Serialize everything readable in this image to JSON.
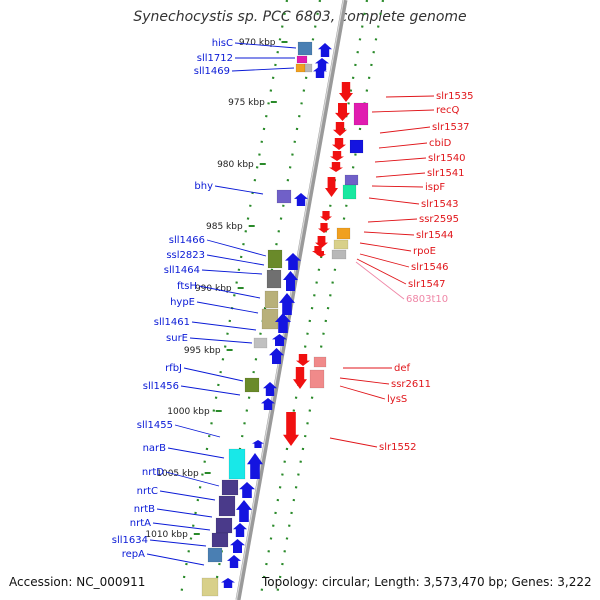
{
  "title": "Synechocystis sp. PCC 6803, complete genome",
  "accession": "Accession: NC_000911",
  "topology": "Topology: circular; Length: 3,573,470 bp; Genes: 3,222",
  "colors": {
    "left_label": "#0a1ad6",
    "right_label": "#e0161b",
    "rna_label": "#ef86a6",
    "tick": "#2a8a2a",
    "backbone": "#9a9a9a"
  },
  "kbp_ticks": [
    {
      "label": "970 kbp",
      "kbp": 970
    },
    {
      "label": "975 kbp",
      "kbp": 975
    },
    {
      "label": "980 kbp",
      "kbp": 980
    },
    {
      "label": "985 kbp",
      "kbp": 985
    },
    {
      "label": "990 kbp",
      "kbp": 990
    },
    {
      "label": "995 kbp",
      "kbp": 995
    },
    {
      "label": "1000 kbp",
      "kbp": 1000
    },
    {
      "label": "1005 kbp",
      "kbp": 1005
    },
    {
      "label": "1010 kbp",
      "kbp": 1010
    }
  ],
  "left_genes": [
    {
      "label": "hisC"
    },
    {
      "label": "sll1712"
    },
    {
      "label": "sll1469"
    },
    {
      "label": "bhy"
    },
    {
      "label": "sll1466"
    },
    {
      "label": "ssl2823"
    },
    {
      "label": "sll1464"
    },
    {
      "label": "ftsH"
    },
    {
      "label": "hypE"
    },
    {
      "label": "sll1461"
    },
    {
      "label": "surE"
    },
    {
      "label": "rfbJ"
    },
    {
      "label": "sll1456"
    },
    {
      "label": "sll1455"
    },
    {
      "label": "narB"
    },
    {
      "label": "nrtD"
    },
    {
      "label": "nrtC"
    },
    {
      "label": "nrtB"
    },
    {
      "label": "nrtA"
    },
    {
      "label": "sll1634"
    },
    {
      "label": "repA"
    }
  ],
  "right_genes": [
    {
      "label": "slr1535"
    },
    {
      "label": "recQ"
    },
    {
      "label": "slr1537"
    },
    {
      "label": "cbiD"
    },
    {
      "label": "slr1540"
    },
    {
      "label": "slr1541"
    },
    {
      "label": "ispF"
    },
    {
      "label": "slr1543"
    },
    {
      "label": "ssr2595"
    },
    {
      "label": "slr1544"
    },
    {
      "label": "rpoE"
    },
    {
      "label": "slr1546"
    },
    {
      "label": "slr1547"
    },
    {
      "label": "6803t10"
    },
    {
      "label": "def"
    },
    {
      "label": "ssr2611"
    },
    {
      "label": "lysS"
    },
    {
      "label": "slr1552"
    }
  ]
}
